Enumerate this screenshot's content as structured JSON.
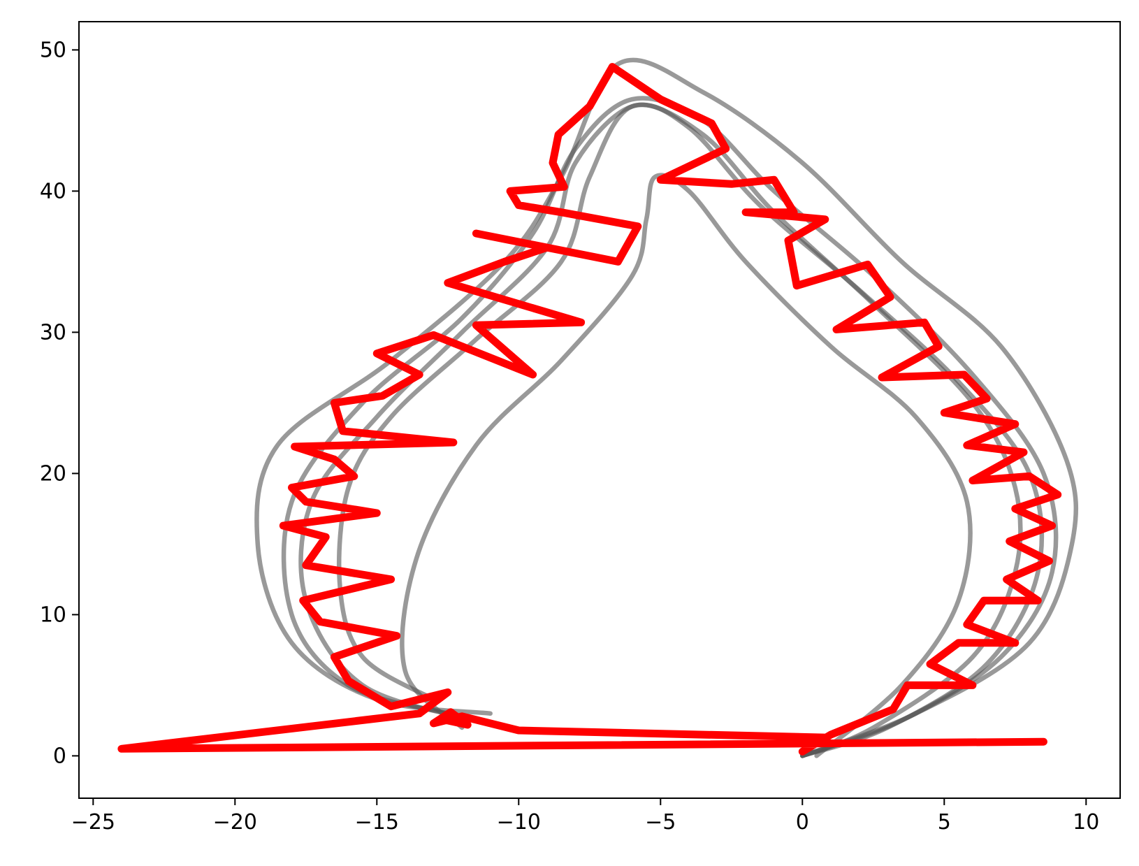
{
  "chart_data": {
    "type": "line",
    "title": "",
    "xlabel": "",
    "ylabel": "",
    "xlim": [
      -25.5,
      11.2
    ],
    "ylim": [
      -3,
      52
    ],
    "grid": false,
    "x_ticks": [
      -25,
      -20,
      -15,
      -10,
      -5,
      0,
      5,
      10
    ],
    "x_tick_labels": [
      "−25",
      "−20",
      "−15",
      "−10",
      "−5",
      "0",
      "5",
      "10"
    ],
    "y_ticks": [
      0,
      10,
      20,
      30,
      40,
      50
    ],
    "y_tick_labels": [
      "0",
      "10",
      "20",
      "30",
      "40",
      "50"
    ],
    "colors": {
      "reference": "#555555",
      "red": "#ff0000"
    },
    "series": [
      {
        "style": "reference",
        "points": [
          [
            -11,
            3
          ],
          [
            -15,
            4
          ],
          [
            -18,
            8
          ],
          [
            -19.2,
            15
          ],
          [
            -18.5,
            22
          ],
          [
            -14.5,
            28
          ],
          [
            -10.5,
            35
          ],
          [
            -8.5,
            41
          ],
          [
            -6.5,
            49
          ],
          [
            -3.5,
            47
          ],
          [
            0,
            42
          ],
          [
            3.5,
            35
          ],
          [
            7,
            29
          ],
          [
            9.3,
            21
          ],
          [
            9.5,
            15
          ],
          [
            8,
            8
          ],
          [
            4,
            3
          ],
          [
            0,
            0
          ]
        ]
      },
      {
        "style": "reference",
        "points": [
          [
            -12.5,
            3
          ],
          [
            -16,
            5
          ],
          [
            -18,
            10
          ],
          [
            -18,
            18
          ],
          [
            -15.5,
            25
          ],
          [
            -12,
            31
          ],
          [
            -9.5,
            37
          ],
          [
            -8,
            43
          ],
          [
            -6,
            46.5
          ],
          [
            -3.5,
            45
          ],
          [
            -1,
            40
          ],
          [
            2.5,
            34
          ],
          [
            6,
            27
          ],
          [
            8.5,
            20
          ],
          [
            8.8,
            13
          ],
          [
            7,
            7
          ],
          [
            3.5,
            2.5
          ],
          [
            0,
            0
          ]
        ]
      },
      {
        "style": "reference",
        "points": [
          [
            -11.5,
            2.5
          ],
          [
            -15.5,
            5
          ],
          [
            -17.5,
            11
          ],
          [
            -17.3,
            18
          ],
          [
            -15,
            24
          ],
          [
            -12,
            30
          ],
          [
            -9,
            36
          ],
          [
            -8,
            42
          ],
          [
            -6,
            46
          ],
          [
            -4,
            44.5
          ],
          [
            -1.5,
            39
          ],
          [
            2,
            33
          ],
          [
            5.5,
            26.5
          ],
          [
            8,
            20
          ],
          [
            8.3,
            13
          ],
          [
            6.5,
            6.5
          ],
          [
            3,
            2
          ],
          [
            0,
            0
          ]
        ]
      },
      {
        "style": "reference",
        "points": [
          [
            -13,
            4
          ],
          [
            -15.5,
            7
          ],
          [
            -16.3,
            12
          ],
          [
            -16,
            19
          ],
          [
            -14.5,
            24
          ],
          [
            -11.5,
            29.5
          ],
          [
            -8.5,
            35
          ],
          [
            -7.5,
            41
          ],
          [
            -6,
            46
          ],
          [
            -3.5,
            44
          ],
          [
            -1,
            38.5
          ],
          [
            2.5,
            32
          ],
          [
            6,
            25
          ],
          [
            7.5,
            19
          ],
          [
            7.5,
            13
          ],
          [
            6,
            7
          ],
          [
            2.5,
            2
          ],
          [
            0,
            0
          ]
        ]
      },
      {
        "style": "reference",
        "points": [
          [
            -12,
            2
          ],
          [
            -14,
            6
          ],
          [
            -13.6,
            14
          ],
          [
            -11.5,
            22
          ],
          [
            -8.5,
            28
          ],
          [
            -6,
            34
          ],
          [
            -5.5,
            38
          ],
          [
            -5.2,
            41
          ],
          [
            -4,
            40
          ],
          [
            -2,
            35
          ],
          [
            1,
            29
          ],
          [
            4,
            24
          ],
          [
            5.8,
            18
          ],
          [
            5.5,
            11
          ],
          [
            3.5,
            5
          ],
          [
            0.5,
            0
          ]
        ]
      },
      {
        "style": "red",
        "points": [
          [
            8.5,
            1
          ],
          [
            -24,
            0.5
          ],
          [
            -13.5,
            3
          ],
          [
            -12.5,
            4.5
          ],
          [
            -14.5,
            3.5
          ],
          [
            -16,
            5.3
          ],
          [
            -16.5,
            7
          ],
          [
            -14.3,
            8.5
          ],
          [
            -17,
            9.5
          ],
          [
            -17.6,
            11
          ],
          [
            -14.5,
            12.5
          ],
          [
            -17.5,
            13.5
          ],
          [
            -16.8,
            15.5
          ],
          [
            -18.3,
            16.3
          ],
          [
            -15,
            17.2
          ],
          [
            -17.5,
            18
          ],
          [
            -18,
            19
          ],
          [
            -15.8,
            19.8
          ],
          [
            -16.5,
            21
          ],
          [
            -17.9,
            21.9
          ],
          [
            -12.3,
            22.2
          ],
          [
            -16.2,
            23
          ],
          [
            -16.5,
            25
          ],
          [
            -14.8,
            25.5
          ],
          [
            -13.5,
            27
          ],
          [
            -15,
            28.5
          ],
          [
            -13,
            29.8
          ],
          [
            -9.5,
            27
          ],
          [
            -11.5,
            30.5
          ],
          [
            -7.8,
            30.7
          ],
          [
            -12.5,
            33.5
          ],
          [
            -10.5,
            35
          ],
          [
            -9,
            36
          ],
          [
            -11.5,
            37
          ],
          [
            -6.5,
            35
          ],
          [
            -5.8,
            37.5
          ],
          [
            -8.5,
            38.5
          ],
          [
            -10,
            39
          ],
          [
            -10.3,
            40
          ],
          [
            -8.4,
            40.3
          ],
          [
            -8.8,
            42
          ],
          [
            -8.6,
            44
          ],
          [
            -7.5,
            46
          ],
          [
            -6.7,
            48.8
          ],
          [
            -5,
            46.5
          ],
          [
            -3.2,
            44.8
          ],
          [
            -2.7,
            43
          ],
          [
            -5,
            40.8
          ],
          [
            -2.5,
            40.5
          ],
          [
            -1,
            40.8
          ],
          [
            -0.3,
            38.5
          ],
          [
            -2,
            38.5
          ],
          [
            0.8,
            38
          ],
          [
            -0.5,
            36.5
          ],
          [
            -0.2,
            33.3
          ],
          [
            2.3,
            34.8
          ],
          [
            3.1,
            32.5
          ],
          [
            1.2,
            30.2
          ],
          [
            4.3,
            30.7
          ],
          [
            4.8,
            29
          ],
          [
            2.8,
            26.8
          ],
          [
            5.7,
            27
          ],
          [
            6.5,
            25.3
          ],
          [
            5,
            24.3
          ],
          [
            7.5,
            23.5
          ],
          [
            5.8,
            22
          ],
          [
            7.8,
            21.5
          ],
          [
            6,
            19.5
          ],
          [
            8,
            19.8
          ],
          [
            9,
            18.5
          ],
          [
            7.5,
            17.5
          ],
          [
            8.8,
            16.3
          ],
          [
            7.3,
            15.2
          ],
          [
            8.7,
            13.8
          ],
          [
            7.2,
            12.5
          ],
          [
            8.3,
            11
          ],
          [
            6.4,
            11
          ],
          [
            5.8,
            9.3
          ],
          [
            7.5,
            8
          ],
          [
            5.5,
            8
          ],
          [
            4.5,
            6.5
          ],
          [
            6,
            5
          ],
          [
            3.7,
            5
          ],
          [
            3.2,
            3.3
          ],
          [
            1,
            1.5
          ],
          [
            0,
            0.3
          ],
          [
            0.8,
            1.3
          ],
          [
            -10,
            1.8
          ],
          [
            -12,
            2.8
          ],
          [
            -13,
            2.3
          ],
          [
            -12.4,
            3.1
          ],
          [
            -11.8,
            2.2
          ],
          [
            -12.5,
            2.5
          ]
        ]
      }
    ]
  }
}
